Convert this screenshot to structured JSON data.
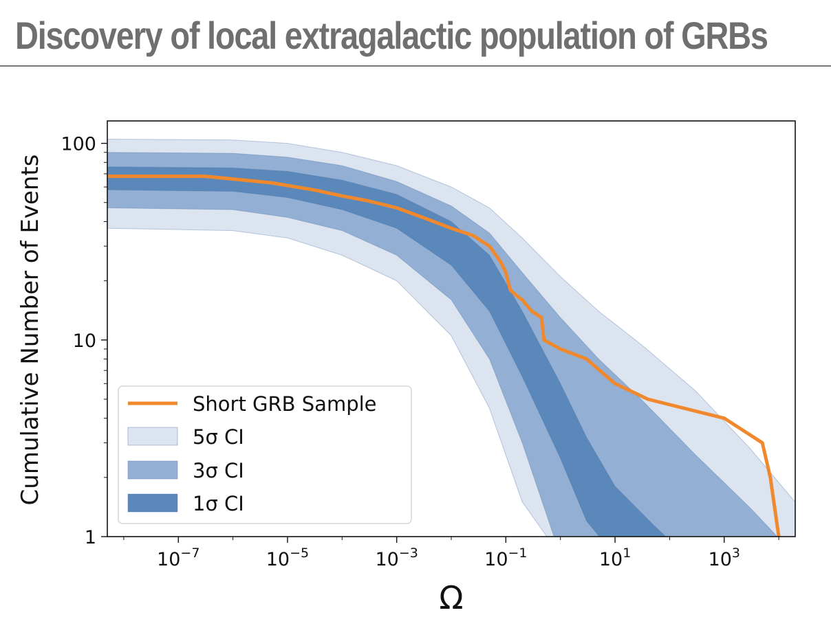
{
  "slide": {
    "title": "Discovery of local extragalactic population of GRBs"
  },
  "colors": {
    "band_5sigma": "#dbe4ef",
    "band_3sigma": "#93b0d4",
    "band_1sigma": "#5a88ba",
    "band_edge": "#4a6fa5",
    "sample_line": "#f0882e"
  },
  "chart_data": {
    "type": "line",
    "title": "",
    "xlabel": "Ω",
    "ylabel": "Cumulative Number of Events",
    "x_scale": "log",
    "y_scale": "log",
    "xlim": [
      5e-09,
      20000
    ],
    "ylim": [
      1,
      130
    ],
    "grid": false,
    "legend_position": "lower-left",
    "x_ticks": [
      {
        "value": 1e-07,
        "base": "10",
        "exp": "−7"
      },
      {
        "value": 1e-05,
        "base": "10",
        "exp": "−5"
      },
      {
        "value": 0.001,
        "base": "10",
        "exp": "−3"
      },
      {
        "value": 0.1,
        "base": "10",
        "exp": "−1"
      },
      {
        "value": 10,
        "base": "10",
        "exp": "1"
      },
      {
        "value": 1000,
        "base": "10",
        "exp": "3"
      }
    ],
    "y_ticks": [
      {
        "value": 1,
        "label": "1"
      },
      {
        "value": 10,
        "label": "10"
      },
      {
        "value": 100,
        "label": "100"
      }
    ],
    "legend": {
      "sample": "Short GRB Sample",
      "ci5": "5σ CI",
      "ci3": "3σ CI",
      "ci1": "1σ CI"
    },
    "bands": [
      {
        "name": "5σ CI",
        "x": [
          5e-09,
          1e-06,
          1e-05,
          0.0001,
          0.001,
          0.01,
          0.05,
          0.2,
          1,
          5,
          30,
          300,
          3000,
          20000
        ],
        "upper": [
          105,
          104,
          100,
          90,
          77,
          60,
          47,
          33,
          21,
          14,
          9.5,
          5.5,
          2.8,
          1.5
        ],
        "lower": [
          37,
          36,
          33,
          27,
          20,
          10.5,
          4.5,
          1.5,
          0.8,
          0.8,
          0.8,
          0.8,
          0.8,
          0.8
        ]
      },
      {
        "name": "3σ CI",
        "x": [
          5e-09,
          1e-06,
          1e-05,
          0.0001,
          0.001,
          0.01,
          0.05,
          0.2,
          1,
          5,
          30,
          300,
          3000,
          20000
        ],
        "upper": [
          90,
          89,
          85,
          77,
          64,
          48,
          35,
          22,
          13,
          8,
          5,
          2.6,
          1.4,
          0.8
        ],
        "lower": [
          47,
          46,
          42,
          36,
          27,
          16,
          8,
          3,
          0.8,
          0.8,
          0.8,
          0.8,
          0.8,
          0.8
        ]
      },
      {
        "name": "1σ CI",
        "x": [
          5e-09,
          1e-06,
          1e-05,
          0.0001,
          0.001,
          0.01,
          0.05,
          0.2,
          1,
          3,
          10,
          50,
          200
        ],
        "upper": [
          76,
          75,
          72,
          65,
          55,
          40,
          27,
          14,
          6,
          3.2,
          1.8,
          1.15,
          0.8
        ],
        "lower": [
          58,
          57,
          53,
          46,
          37,
          24,
          14,
          6.5,
          2.5,
          1.2,
          0.8,
          0.8,
          0.8
        ]
      }
    ],
    "series": [
      {
        "name": "Short GRB Sample",
        "x": [
          5e-09,
          3e-07,
          5e-06,
          3e-05,
          0.0001,
          0.0003,
          0.001,
          0.003,
          0.01,
          0.025,
          0.05,
          0.08,
          0.1,
          0.12,
          0.15,
          0.2,
          0.3,
          0.45,
          0.5,
          1,
          3,
          10,
          40,
          1000,
          5000,
          7000,
          10000
        ],
        "y": [
          68,
          68,
          63,
          58,
          54,
          51,
          47,
          42,
          37,
          34,
          30,
          25,
          22,
          18,
          17,
          16,
          14,
          13,
          10,
          9,
          8,
          6,
          5,
          4,
          3,
          2,
          1
        ]
      }
    ]
  }
}
